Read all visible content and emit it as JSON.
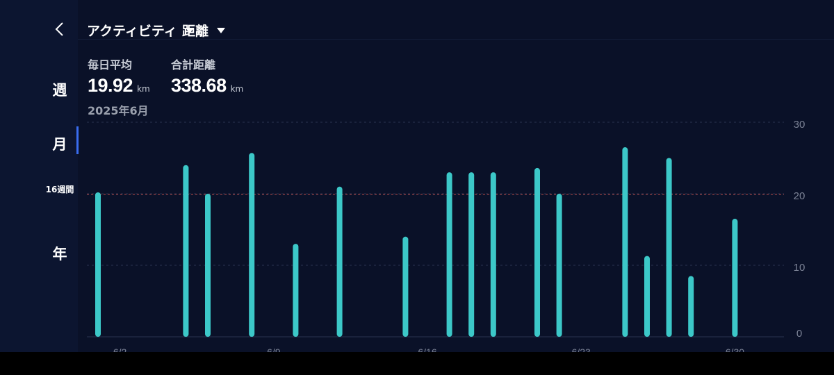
{
  "header": {
    "back_icon": "chevron-left-icon",
    "activity_dropdown": "アクティビティ",
    "metric_dropdown": "距離"
  },
  "sidebar": {
    "periods": [
      {
        "label": "週",
        "active": false
      },
      {
        "label": "月",
        "active": true
      },
      {
        "label": "16週間",
        "active": false
      },
      {
        "label": "年",
        "active": false
      }
    ]
  },
  "stats": {
    "average": {
      "label": "毎日平均",
      "value": "19.92",
      "unit": "km"
    },
    "total": {
      "label": "合計距離",
      "value": "338.68",
      "unit": "km"
    },
    "period_label": "2025年6月"
  },
  "colors": {
    "background": "#0a1128",
    "bar": "#3cc8c8",
    "average_line": "#c0504d"
  },
  "chart_data": {
    "type": "bar",
    "x": [
      "6/1",
      "6/5",
      "6/6",
      "6/8",
      "6/10",
      "6/12",
      "6/15",
      "6/17",
      "6/18",
      "6/19",
      "6/21",
      "6/22",
      "6/25",
      "6/26",
      "6/27",
      "6/28",
      "6/30"
    ],
    "values": [
      20.2,
      24.0,
      20.0,
      25.7,
      13.0,
      21.0,
      14.0,
      23.0,
      23.0,
      23.0,
      23.6,
      20.0,
      26.5,
      11.3,
      25.0,
      8.5,
      16.5
    ],
    "x_tick_labels": [
      "6/2",
      "6/9",
      "6/16",
      "6/23",
      "6/30"
    ],
    "y_tick_labels": [
      "0",
      "10",
      "20",
      "30"
    ],
    "ylim": [
      0,
      30
    ],
    "average": 19.92,
    "grid": true
  }
}
